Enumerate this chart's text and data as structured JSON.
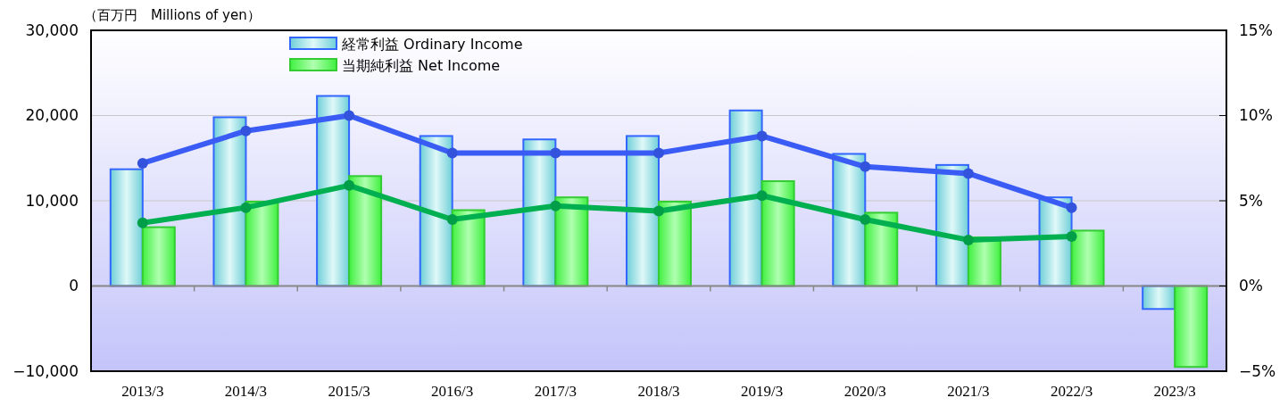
{
  "chart_data": {
    "type": "bar",
    "ylabel": "（百万円　Millions of yen）",
    "categories": [
      "2013/3",
      "2014/3",
      "2015/3",
      "2016/3",
      "2017/3",
      "2018/3",
      "2019/3",
      "2020/3",
      "2021/3",
      "2022/3",
      "2023/3"
    ],
    "series": [
      {
        "name": "経常利益 Ordinary Income",
        "color": "#3366ff",
        "values": [
          13700,
          19800,
          22300,
          17600,
          17200,
          17600,
          20600,
          15500,
          14200,
          10400,
          -2700
        ]
      },
      {
        "name": "当期純利益 Net Income",
        "color": "#33cc33",
        "values": [
          6900,
          9900,
          12900,
          8900,
          10400,
          9900,
          12300,
          8600,
          5700,
          6500,
          -9500
        ]
      },
      {
        "type": "line",
        "axis": "y2",
        "color": "#3a5cf5",
        "values": [
          7.2,
          9.1,
          10.0,
          7.8,
          7.8,
          7.8,
          8.8,
          7.0,
          6.6,
          4.6,
          null
        ]
      },
      {
        "type": "line",
        "axis": "y2",
        "color": "#00b050",
        "values": [
          3.7,
          4.6,
          5.9,
          3.9,
          4.7,
          4.4,
          5.3,
          3.9,
          2.7,
          2.9,
          null
        ]
      }
    ],
    "ylim": [
      -10000,
      30000
    ],
    "yticks": [
      {
        "value": -10000,
        "label": "−10,000"
      },
      0,
      {
        "value": 10000,
        "label": "10,000"
      },
      {
        "value": 20000,
        "label": "20,000"
      },
      {
        "value": 30000,
        "label": "30,000"
      }
    ],
    "y2lim": [
      -5,
      15
    ],
    "y2ticks": [
      {
        "value": -5,
        "label": "−5%"
      },
      {
        "value": 0,
        "label": "0%"
      },
      {
        "value": 5,
        "label": "5%"
      },
      {
        "value": 10,
        "label": "10%"
      },
      {
        "value": 15,
        "label": "15%"
      }
    ],
    "grid": "y",
    "legend": "top",
    "marker": "circle"
  }
}
